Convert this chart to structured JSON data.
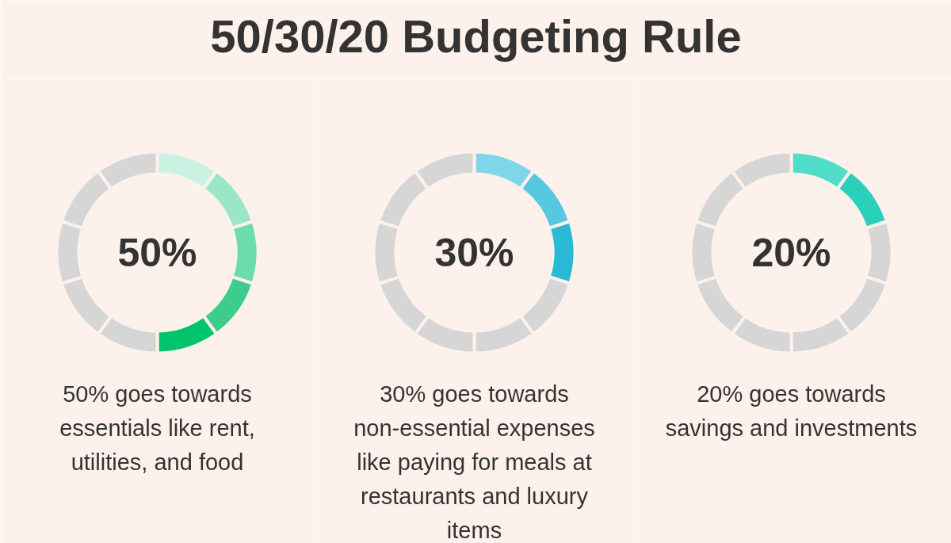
{
  "chart_data": [
    {
      "type": "donut",
      "title": "50/30/20 Budgeting Rule",
      "categories": [
        null,
        null,
        null,
        null,
        null,
        null,
        null,
        null,
        null,
        null
      ],
      "values": [
        10,
        10,
        10,
        10,
        10,
        10,
        10,
        10,
        10,
        10
      ],
      "colors": [
        "#c9f2e3",
        "#9ae6c6",
        "#6cdcae",
        "#3ccc8c",
        "#00c46a",
        "#d6d6d6",
        "#d6d6d6",
        "#d6d6d6",
        "#d6d6d6",
        "#d6d6d6"
      ],
      "annotations": [
        "50%",
        "50% goes towards\nessentials like rent,\nutilities, and food"
      ]
    },
    {
      "type": "donut",
      "categories": [
        null,
        null,
        null,
        null,
        null,
        null,
        null,
        null,
        null,
        null
      ],
      "values": [
        10,
        10,
        10,
        10,
        10,
        10,
        10,
        10,
        10,
        10
      ],
      "colors": [
        "#7fd6e8",
        "#56c8e0",
        "#2bbad6",
        "#d6d6d6",
        "#d6d6d6",
        "#d6d6d6",
        "#d6d6d6",
        "#d6d6d6",
        "#d6d6d6",
        "#d6d6d6"
      ],
      "annotations": [
        "30%",
        "30% goes towards\nnon-essential expenses\nlike paying for meals at\nrestaurants and luxury\nitems"
      ]
    },
    {
      "type": "donut",
      "categories": [
        null,
        null,
        null,
        null,
        null,
        null,
        null,
        null,
        null,
        null
      ],
      "values": [
        10,
        10,
        10,
        10,
        10,
        10,
        10,
        10,
        10,
        10
      ],
      "colors": [
        "#4fdcc8",
        "#2ad0bb",
        "#d6d6d6",
        "#d6d6d6",
        "#d6d6d6",
        "#d6d6d6",
        "#d6d6d6",
        "#d6d6d6",
        "#d6d6d6",
        "#d6d6d6"
      ],
      "annotations": [
        "20%",
        "20% goes towards\nsavings and investments"
      ]
    }
  ]
}
